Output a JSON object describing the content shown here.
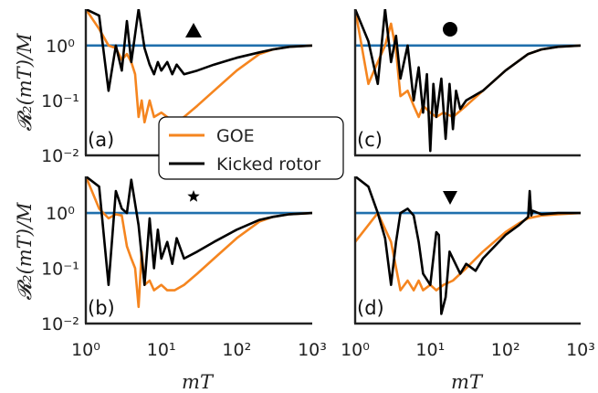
{
  "chart_data": {
    "type": "line",
    "x_scale": "log",
    "y_scale": "log",
    "xlim": [
      1,
      1000
    ],
    "ylim": [
      0.01,
      4.6
    ],
    "xlabel": "mT",
    "ylabel": "R2(mT)/M",
    "ylabel_display": "𝓡₂(mT)/M",
    "x_tick_labels": [
      "10⁰",
      "10¹",
      "10²",
      "10³"
    ],
    "y_tick_labels": [
      "10⁰",
      "10⁻¹",
      "10⁻²"
    ],
    "legend": {
      "placement": "center",
      "entries": [
        "GOE",
        "Kicked rotor"
      ]
    },
    "colors": {
      "GOE": "#f5851f",
      "Kicked rotor": "#000000",
      "reference": "#1f6fad"
    },
    "panels": [
      {
        "label": "(a)",
        "marker": "triangle",
        "series": [
          {
            "name": "GOE",
            "x": [
              1,
              1.5,
              2,
              2.5,
              3,
              3.5,
              4,
              4.5,
              5,
              5.5,
              6,
              7,
              8,
              10,
              12,
              15,
              20,
              30,
              50,
              100,
              200,
              300,
              500,
              1000
            ],
            "y": [
              4.6,
              2.0,
              1.0,
              0.9,
              0.55,
              0.7,
              0.5,
              0.3,
              0.05,
              0.1,
              0.04,
              0.1,
              0.05,
              0.06,
              0.05,
              0.04,
              0.05,
              0.08,
              0.15,
              0.35,
              0.7,
              0.85,
              0.95,
              1.0
            ]
          },
          {
            "name": "Kicked rotor",
            "x": [
              1,
              1.5,
              2,
              2.5,
              3,
              3.5,
              4,
              5,
              6,
              7,
              8,
              9,
              10,
              12,
              14,
              16,
              20,
              30,
              50,
              100,
              200,
              300,
              500,
              1000
            ],
            "y": [
              4.6,
              3.5,
              0.15,
              1.0,
              0.35,
              2.8,
              0.5,
              4.6,
              0.9,
              0.45,
              0.3,
              0.5,
              0.35,
              0.5,
              0.3,
              0.45,
              0.3,
              0.35,
              0.45,
              0.6,
              0.75,
              0.85,
              0.95,
              1.0
            ]
          }
        ]
      },
      {
        "label": "(b)",
        "marker": "star",
        "series": [
          {
            "name": "GOE",
            "x": [
              1,
              1.5,
              2,
              2.5,
              3,
              3.5,
              4,
              4.5,
              5,
              5.5,
              6,
              7,
              8,
              10,
              12,
              15,
              20,
              30,
              50,
              100,
              200,
              300,
              500,
              1000
            ],
            "y": [
              4.6,
              1.2,
              0.8,
              0.95,
              0.9,
              0.25,
              0.15,
              0.1,
              0.02,
              0.2,
              0.05,
              0.06,
              0.04,
              0.05,
              0.04,
              0.04,
              0.05,
              0.08,
              0.15,
              0.35,
              0.7,
              0.85,
              0.95,
              1.0
            ]
          },
          {
            "name": "Kicked rotor",
            "x": [
              1,
              1.5,
              2,
              2.5,
              3,
              3.5,
              4,
              5,
              6,
              7,
              8,
              9,
              10,
              12,
              14,
              16,
              20,
              30,
              50,
              100,
              200,
              300,
              500,
              1000
            ],
            "y": [
              4.6,
              3.0,
              0.05,
              2.5,
              1.2,
              1.0,
              4.0,
              0.6,
              0.05,
              0.8,
              0.1,
              0.5,
              0.15,
              0.3,
              0.12,
              0.35,
              0.15,
              0.2,
              0.3,
              0.5,
              0.75,
              0.85,
              0.95,
              1.0
            ]
          }
        ]
      },
      {
        "label": "(c)",
        "marker": "circle",
        "series": [
          {
            "name": "GOE",
            "x": [
              1,
              1.5,
              2,
              2.5,
              3,
              3.5,
              4,
              5,
              6,
              7,
              8,
              10,
              12,
              15,
              20,
              30,
              50,
              100,
              200,
              300,
              500,
              1000
            ],
            "y": [
              4.6,
              0.2,
              0.5,
              1.0,
              2.5,
              0.8,
              0.12,
              0.15,
              0.08,
              0.05,
              0.08,
              0.06,
              0.05,
              0.06,
              0.05,
              0.08,
              0.15,
              0.35,
              0.7,
              0.85,
              0.95,
              1.0
            ]
          },
          {
            "name": "Kicked rotor",
            "x": [
              1,
              1.5,
              2,
              2.5,
              3,
              3.5,
              4,
              5,
              6,
              7,
              8,
              9,
              10,
              11,
              12,
              14,
              16,
              18,
              20,
              22,
              25,
              30,
              50,
              100,
              200,
              300,
              500,
              1000
            ],
            "y": [
              4.6,
              1.2,
              0.2,
              4.6,
              0.5,
              1.5,
              0.25,
              1.0,
              0.1,
              0.4,
              0.06,
              0.3,
              0.012,
              0.2,
              0.05,
              0.25,
              0.02,
              0.2,
              0.03,
              0.15,
              0.07,
              0.1,
              0.15,
              0.35,
              0.7,
              0.85,
              0.95,
              1.0
            ]
          }
        ]
      },
      {
        "label": "(d)",
        "marker": "triangle-down",
        "series": [
          {
            "name": "GOE",
            "x": [
              1,
              2,
              3,
              4,
              5,
              6,
              7,
              8,
              10,
              12,
              15,
              20,
              30,
              50,
              100,
              150,
              200,
              300,
              500,
              1000
            ],
            "y": [
              0.3,
              1.0,
              0.3,
              0.04,
              0.06,
              0.04,
              0.06,
              0.04,
              0.05,
              0.04,
              0.05,
              0.06,
              0.1,
              0.2,
              0.45,
              0.65,
              0.8,
              0.9,
              0.95,
              1.0
            ]
          },
          {
            "name": "Kicked rotor",
            "x": [
              1,
              1.5,
              2,
              2.5,
              3,
              3.5,
              4,
              5,
              6,
              7,
              8,
              10,
              12,
              13,
              14,
              16,
              18,
              20,
              25,
              30,
              40,
              50,
              100,
              150,
              200,
              210,
              220,
              230,
              300,
              500,
              1000
            ],
            "y": [
              4.6,
              3.0,
              1.0,
              0.35,
              0.05,
              0.3,
              1.0,
              1.2,
              0.9,
              0.3,
              0.08,
              0.05,
              0.45,
              0.4,
              0.015,
              0.03,
              0.2,
              0.15,
              0.08,
              0.12,
              0.09,
              0.15,
              0.4,
              0.6,
              0.85,
              2.5,
              0.9,
              1.1,
              0.95,
              1.0,
              1.0
            ]
          }
        ]
      }
    ]
  }
}
